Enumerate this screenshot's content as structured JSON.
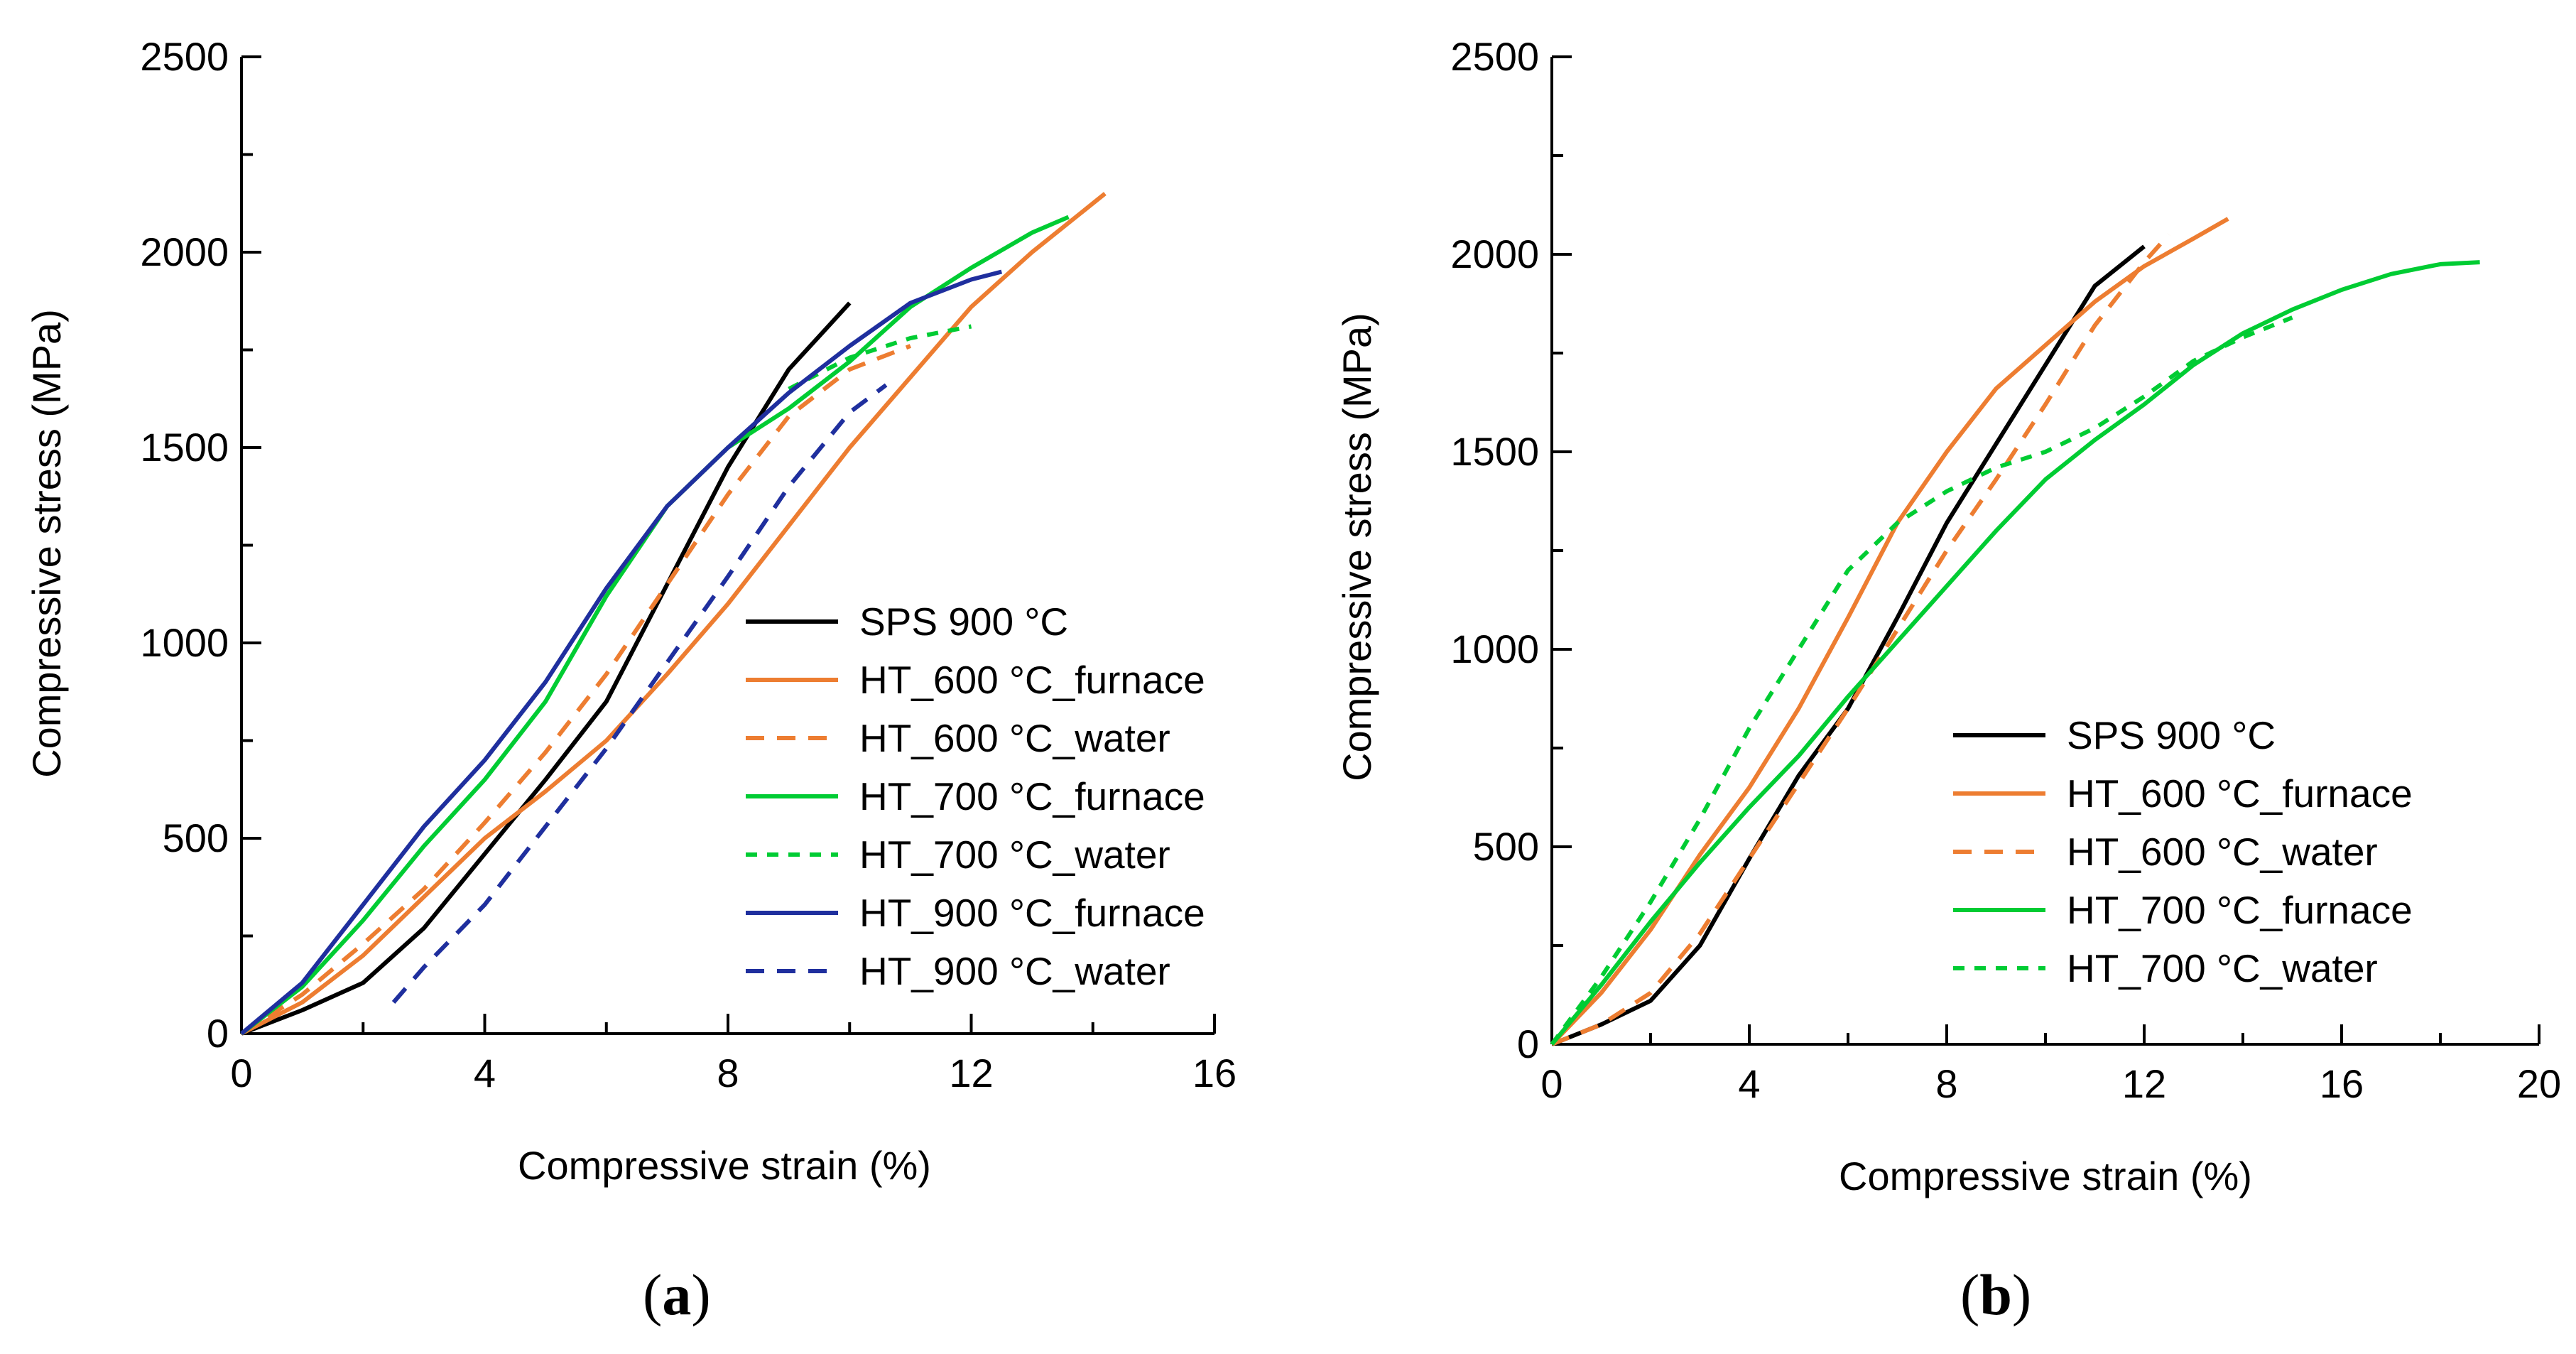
{
  "colors": {
    "black": "#000000",
    "orange": "#ED7D31",
    "green": "#00CC33",
    "blue": "#1F2F9E"
  },
  "chart_data": [
    {
      "type": "line",
      "panel": "a",
      "panel_label": {
        "open": "(",
        "letter": "a",
        "close": ")"
      },
      "xlabel": "Compressive strain (%)",
      "ylabel": "Compressive stress (MPa)",
      "xlim": [
        0,
        16
      ],
      "ylim": [
        0,
        2500
      ],
      "xticks": [
        0,
        4,
        8,
        12,
        16
      ],
      "xtick_labels": [
        "0",
        "4",
        "8",
        "12",
        "16"
      ],
      "yticks": [
        0,
        500,
        1000,
        1500,
        2000,
        2500
      ],
      "ytick_labels": [
        "0",
        "500",
        "1000",
        "1500",
        "2000",
        "2500"
      ],
      "grid": false,
      "legend_position": "lower-right",
      "series": [
        {
          "name": "SPS 900 °C",
          "color": "black",
          "style": "solid",
          "x": [
            0,
            1,
            2,
            3,
            4,
            5,
            6,
            7,
            8,
            9,
            10
          ],
          "y": [
            0,
            60,
            130,
            270,
            460,
            650,
            850,
            1150,
            1450,
            1700,
            1870
          ]
        },
        {
          "name": "HT_600 °C_furnace",
          "color": "orange",
          "style": "solid",
          "x": [
            0,
            1,
            2,
            3,
            4,
            5,
            6,
            7,
            8,
            9,
            10,
            11,
            12,
            13,
            14.2
          ],
          "y": [
            0,
            80,
            200,
            350,
            500,
            620,
            750,
            920,
            1100,
            1300,
            1500,
            1680,
            1860,
            2000,
            2150
          ]
        },
        {
          "name": "HT_600 °C_water",
          "color": "orange",
          "style": "dashed",
          "x": [
            0,
            1,
            2,
            3,
            4,
            5,
            6,
            7,
            8,
            9,
            10,
            11
          ],
          "y": [
            0,
            100,
            230,
            370,
            540,
            720,
            920,
            1150,
            1380,
            1580,
            1700,
            1760
          ]
        },
        {
          "name": "HT_700 °C_furnace",
          "color": "green",
          "style": "solid",
          "x": [
            0,
            1,
            2,
            3,
            4,
            5,
            6,
            7,
            8,
            9,
            10,
            11,
            12,
            13,
            13.6
          ],
          "y": [
            0,
            120,
            290,
            480,
            650,
            850,
            1120,
            1350,
            1500,
            1600,
            1720,
            1860,
            1960,
            2050,
            2090
          ]
        },
        {
          "name": "HT_700 °C_water",
          "color": "green",
          "style": "dotted",
          "x": [
            9,
            10,
            11,
            12
          ],
          "y": [
            1650,
            1730,
            1780,
            1810
          ]
        },
        {
          "name": "HT_900 °C_furnace",
          "color": "blue",
          "style": "solid",
          "x": [
            0,
            1,
            2,
            3,
            4,
            5,
            6,
            7,
            8,
            9,
            10,
            11,
            12,
            12.5
          ],
          "y": [
            0,
            130,
            330,
            530,
            700,
            900,
            1140,
            1350,
            1500,
            1640,
            1760,
            1870,
            1930,
            1950
          ]
        },
        {
          "name": "HT_900 °C_water",
          "color": "blue",
          "style": "dashed",
          "x": [
            2.5,
            3,
            4,
            5,
            6,
            7,
            8,
            9,
            10,
            10.6
          ],
          "y": [
            80,
            170,
            330,
            530,
            730,
            950,
            1170,
            1400,
            1590,
            1660
          ]
        }
      ]
    },
    {
      "type": "line",
      "panel": "b",
      "panel_label": {
        "open": "(",
        "letter": "b",
        "close": ")"
      },
      "xlabel": "Compressive strain (%)",
      "ylabel": "Compressive stress (MPa)",
      "xlim": [
        0,
        20
      ],
      "ylim": [
        0,
        2500
      ],
      "xticks": [
        0,
        4,
        8,
        12,
        16,
        20
      ],
      "xtick_labels": [
        "0",
        "4",
        "8",
        "12",
        "16",
        "20"
      ],
      "yticks": [
        0,
        500,
        1000,
        1500,
        2000,
        2500
      ],
      "ytick_labels": [
        "0",
        "500",
        "1000",
        "1500",
        "2000",
        "2500"
      ],
      "grid": false,
      "legend_position": "lower-right",
      "series": [
        {
          "name": "SPS 900 °C",
          "color": "black",
          "style": "solid",
          "x": [
            0,
            1,
            2,
            3,
            4,
            5,
            6,
            7,
            8,
            9,
            10,
            11,
            12
          ],
          "y": [
            0,
            50,
            110,
            250,
            470,
            680,
            850,
            1080,
            1320,
            1520,
            1720,
            1920,
            2020
          ]
        },
        {
          "name": "HT_600 °C_furnace",
          "color": "orange",
          "style": "solid",
          "x": [
            0,
            1,
            2,
            3,
            4,
            5,
            6,
            7,
            8,
            9,
            10,
            11,
            12,
            13,
            13.7
          ],
          "y": [
            0,
            130,
            290,
            480,
            650,
            850,
            1080,
            1320,
            1500,
            1660,
            1770,
            1880,
            1970,
            2040,
            2090
          ]
        },
        {
          "name": "HT_600 °C_water",
          "color": "orange",
          "style": "dashed",
          "x": [
            0,
            1,
            2,
            3,
            4,
            5,
            6,
            7,
            8,
            9,
            10,
            11,
            12,
            12.5
          ],
          "y": [
            0,
            50,
            130,
            280,
            470,
            660,
            850,
            1050,
            1250,
            1430,
            1620,
            1820,
            1980,
            2050
          ]
        },
        {
          "name": "HT_700 °C_furnace",
          "color": "green",
          "style": "solid",
          "x": [
            0,
            1,
            2,
            3,
            4,
            5,
            6,
            7,
            8,
            9,
            10,
            11,
            12,
            13,
            14,
            15,
            16,
            17,
            18,
            18.8
          ],
          "y": [
            0,
            150,
            310,
            460,
            600,
            730,
            880,
            1020,
            1160,
            1300,
            1430,
            1530,
            1620,
            1720,
            1800,
            1860,
            1910,
            1950,
            1975,
            1980
          ]
        },
        {
          "name": "HT_700 °C_water",
          "color": "green",
          "style": "dotted",
          "x": [
            0,
            1,
            2,
            3,
            4,
            5,
            6,
            7,
            8,
            9,
            10,
            11,
            12,
            13,
            14,
            15
          ],
          "y": [
            0,
            170,
            360,
            570,
            800,
            1000,
            1200,
            1320,
            1400,
            1460,
            1500,
            1560,
            1640,
            1730,
            1790,
            1840
          ]
        }
      ]
    }
  ]
}
